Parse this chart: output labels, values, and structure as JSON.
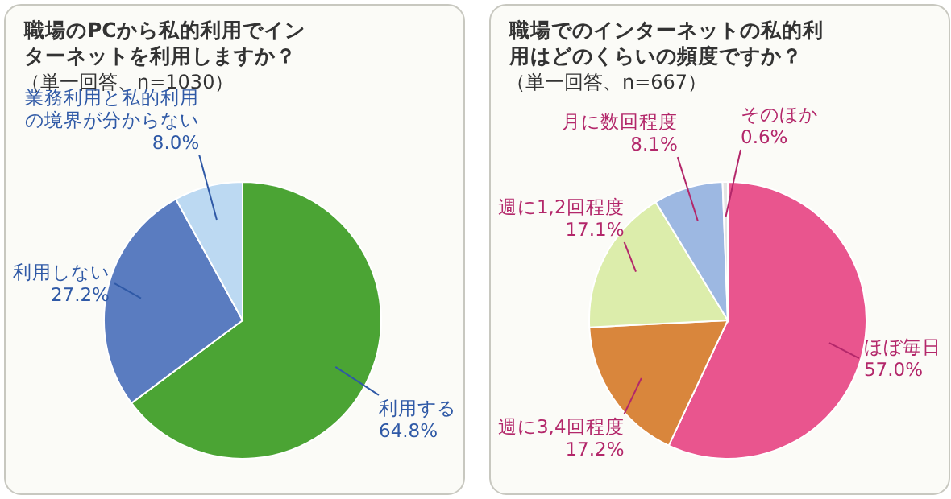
{
  "chart_data": [
    {
      "type": "pie",
      "title": "職場のPCから私的利用でインターネットを利用しますか？",
      "subtitle": "（単一回答、n=1030）",
      "categories": [
        "利用する",
        "利用しない",
        "業務利用と私的利用の境界が分からない"
      ],
      "values": [
        64.8,
        27.2,
        8.0
      ],
      "value_labels": [
        "64.8%",
        "27.2%",
        "8.0%"
      ],
      "colors": [
        "#4ba434",
        "#5a7cc0",
        "#bcd9f2"
      ]
    },
    {
      "type": "pie",
      "title": "職場でのインターネットの私的利用はどのくらいの頻度ですか？",
      "subtitle": "（単一回答、n=667）",
      "categories": [
        "ほぼ毎日",
        "週に3,4回程度",
        "週に1,2回程度",
        "月に数回程度",
        "そのほか"
      ],
      "values": [
        57.0,
        17.2,
        17.1,
        8.1,
        0.6
      ],
      "value_labels": [
        "57.0%",
        "17.2%",
        "17.1%",
        "8.1%",
        "0.6%"
      ],
      "colors": [
        "#e9558e",
        "#d9863c",
        "#dcedab",
        "#9db8e2",
        "#e4e4e4"
      ]
    }
  ]
}
